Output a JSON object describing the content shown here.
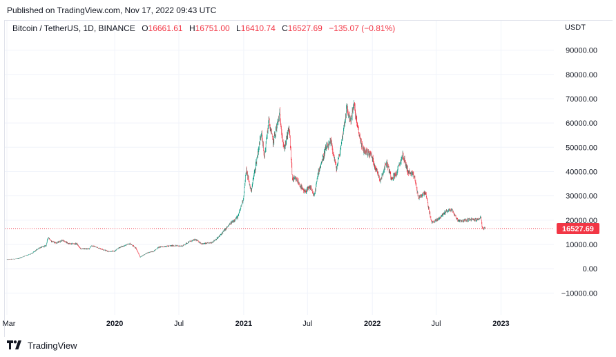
{
  "header": {
    "published": "Published on TradingView.com, Nov 17, 2022 09:43 UTC"
  },
  "legend": {
    "symbol": "Bitcoin / TetherUS, 1D, BINANCE",
    "open_label": "O",
    "open": "16661.61",
    "high_label": "H",
    "high": "16751.00",
    "low_label": "L",
    "low": "16410.74",
    "close_label": "C",
    "close": "16527.69",
    "change": "−135.07 (−0.81%)"
  },
  "currency": "USDT",
  "colors": {
    "up": "#089981",
    "down": "#f23645",
    "grid": "#f0f3fa",
    "price_line": "#f23645"
  },
  "footer": {
    "brand": "TradingView",
    "logo_icon": "tradingview-logo-icon"
  },
  "chart_data": {
    "type": "candlestick",
    "symbol": "BTCUSDT",
    "interval": "1D",
    "exchange": "BINANCE",
    "ylim": [
      -19000,
      97000
    ],
    "y_ticks": [
      -10000,
      0,
      10000,
      20000,
      30000,
      40000,
      50000,
      60000,
      70000,
      80000,
      90000
    ],
    "y_tick_labels": [
      "−10000.00",
      "0.00",
      "10000.00",
      "20000.00",
      "30000.00",
      "40000.00",
      "50000.00",
      "60000.00",
      "70000.00",
      "80000.00",
      "90000.00"
    ],
    "x_range": [
      "2019-03-01",
      "2023-05-31"
    ],
    "x_ticks": [
      {
        "date": "2019-03-01",
        "label": "Mar",
        "bold": false
      },
      {
        "date": "2020-01-01",
        "label": "2020",
        "bold": true
      },
      {
        "date": "2020-07-01",
        "label": "Jul",
        "bold": false
      },
      {
        "date": "2021-01-01",
        "label": "2021",
        "bold": true
      },
      {
        "date": "2021-07-01",
        "label": "Jul",
        "bold": false
      },
      {
        "date": "2022-01-01",
        "label": "2022",
        "bold": true
      },
      {
        "date": "2022-07-01",
        "label": "Jul",
        "bold": false
      },
      {
        "date": "2023-01-01",
        "label": "2023",
        "bold": true
      }
    ],
    "last_price": 16527.69,
    "last_price_label": "16527.69",
    "close_series": [
      [
        "2019-03-01",
        3800
      ],
      [
        "2019-04-01",
        4100
      ],
      [
        "2019-04-20",
        5200
      ],
      [
        "2019-05-10",
        6200
      ],
      [
        "2019-05-31",
        8500
      ],
      [
        "2019-06-20",
        9500
      ],
      [
        "2019-06-26",
        13000
      ],
      [
        "2019-07-05",
        11300
      ],
      [
        "2019-07-20",
        10600
      ],
      [
        "2019-08-05",
        11700
      ],
      [
        "2019-08-25",
        10200
      ],
      [
        "2019-09-15",
        10300
      ],
      [
        "2019-09-26",
        8200
      ],
      [
        "2019-10-20",
        8200
      ],
      [
        "2019-10-26",
        9500
      ],
      [
        "2019-11-15",
        8600
      ],
      [
        "2019-12-15",
        7100
      ],
      [
        "2019-12-31",
        7200
      ],
      [
        "2020-01-15",
        8800
      ],
      [
        "2020-02-13",
        10300
      ],
      [
        "2020-03-01",
        8500
      ],
      [
        "2020-03-13",
        4800
      ],
      [
        "2020-03-31",
        6400
      ],
      [
        "2020-04-20",
        7200
      ],
      [
        "2020-05-05",
        8900
      ],
      [
        "2020-05-25",
        9200
      ],
      [
        "2020-06-15",
        9500
      ],
      [
        "2020-07-10",
        9300
      ],
      [
        "2020-07-28",
        11000
      ],
      [
        "2020-08-17",
        12000
      ],
      [
        "2020-09-05",
        10200
      ],
      [
        "2020-10-01",
        10700
      ],
      [
        "2020-10-21",
        12900
      ],
      [
        "2020-11-05",
        15500
      ],
      [
        "2020-11-25",
        18700
      ],
      [
        "2020-12-16",
        21500
      ],
      [
        "2020-12-31",
        29000
      ],
      [
        "2021-01-08",
        40500
      ],
      [
        "2021-01-22",
        32000
      ],
      [
        "2021-02-08",
        46000
      ],
      [
        "2021-02-21",
        57000
      ],
      [
        "2021-02-28",
        45500
      ],
      [
        "2021-03-13",
        61000
      ],
      [
        "2021-03-25",
        52000
      ],
      [
        "2021-04-13",
        63500
      ],
      [
        "2021-04-25",
        49000
      ],
      [
        "2021-05-10",
        58000
      ],
      [
        "2021-05-19",
        37000
      ],
      [
        "2021-06-01",
        36500
      ],
      [
        "2021-06-21",
        31500
      ],
      [
        "2021-07-10",
        33500
      ],
      [
        "2021-07-20",
        29800
      ],
      [
        "2021-08-01",
        40000
      ],
      [
        "2021-08-22",
        49500
      ],
      [
        "2021-09-06",
        52000
      ],
      [
        "2021-09-21",
        41000
      ],
      [
        "2021-10-01",
        48000
      ],
      [
        "2021-10-20",
        66000
      ],
      [
        "2021-10-31",
        61000
      ],
      [
        "2021-11-10",
        67500
      ],
      [
        "2021-11-20",
        58000
      ],
      [
        "2021-12-05",
        49000
      ],
      [
        "2021-12-28",
        47000
      ],
      [
        "2022-01-10",
        41500
      ],
      [
        "2022-01-24",
        36500
      ],
      [
        "2022-02-10",
        44000
      ],
      [
        "2022-02-24",
        37500
      ],
      [
        "2022-03-10",
        39000
      ],
      [
        "2022-03-28",
        47000
      ],
      [
        "2022-04-12",
        40000
      ],
      [
        "2022-04-30",
        38000
      ],
      [
        "2022-05-12",
        29000
      ],
      [
        "2022-05-31",
        31700
      ],
      [
        "2022-06-13",
        22500
      ],
      [
        "2022-06-18",
        19000
      ],
      [
        "2022-07-05",
        20200
      ],
      [
        "2022-07-30",
        23800
      ],
      [
        "2022-08-14",
        24300
      ],
      [
        "2022-08-31",
        20000
      ],
      [
        "2022-09-15",
        19700
      ],
      [
        "2022-10-05",
        20300
      ],
      [
        "2022-10-25",
        20100
      ],
      [
        "2022-11-05",
        21300
      ],
      [
        "2022-11-09",
        16500
      ],
      [
        "2022-11-17",
        16527.69
      ]
    ]
  }
}
